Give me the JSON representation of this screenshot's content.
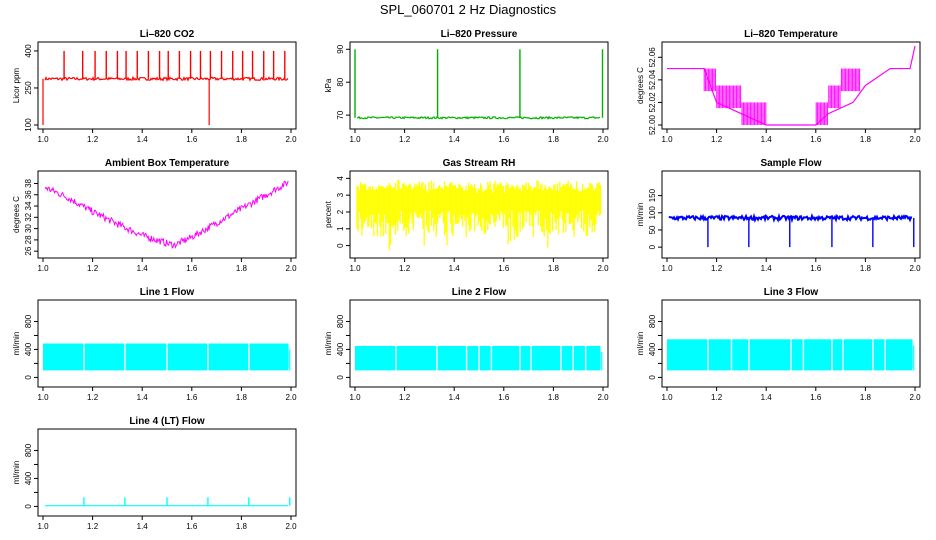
{
  "page_title": "SPL_060701  2 Hz Diagnostics",
  "colors": {
    "red": "#ff0000",
    "green": "#00b000",
    "magenta": "#ff00ff",
    "yellow": "#ffff00",
    "blue": "#0000ff",
    "cyan": "#00ffff"
  },
  "chart_data": [
    {
      "type": "line",
      "title": "Li–820 CO2",
      "ylabel": "Licor ppm",
      "color": "#ff0000",
      "style": "spiky",
      "xlim": [
        1.0,
        2.0
      ],
      "xticks": [
        1.0,
        1.2,
        1.4,
        1.6,
        1.8,
        2.0
      ],
      "xtick_labels": [
        "1.0",
        "1.2",
        "1.4",
        "1.6",
        "1.8",
        "2.0"
      ],
      "ylim": [
        100,
        420
      ],
      "yticks": [
        100,
        250,
        400
      ],
      "ytick_labels": [
        "100",
        "250",
        "400"
      ],
      "base": 287,
      "spread": 6,
      "spike_to": 400,
      "spike_xs": [
        1.085,
        1.16,
        1.21,
        1.255,
        1.3,
        1.335,
        1.38,
        1.425,
        1.47,
        1.505,
        1.55,
        1.595,
        1.635,
        1.675,
        1.72,
        1.765,
        1.805,
        1.845,
        1.89,
        1.93,
        1.975
      ],
      "drops": [
        [
          1.0,
          100
        ],
        [
          1.67,
          100
        ]
      ]
    },
    {
      "type": "line",
      "title": "Li–820 Pressure",
      "ylabel": "kPa",
      "color": "#00b000",
      "style": "spiky",
      "xlim": [
        1.0,
        2.0
      ],
      "xticks": [
        1.0,
        1.2,
        1.4,
        1.6,
        1.8,
        2.0
      ],
      "xtick_labels": [
        "1.0",
        "1.2",
        "1.4",
        "1.6",
        "1.8",
        "2.0"
      ],
      "ylim": [
        67,
        91
      ],
      "yticks": [
        70,
        80,
        90
      ],
      "ytick_labels": [
        "70",
        "80",
        "90"
      ],
      "base": 69.2,
      "spread": 0.3,
      "spike_to": 90,
      "spike_xs": [
        1.0,
        1.333,
        1.665,
        1.998
      ],
      "drops": []
    },
    {
      "type": "step",
      "title": "Li–820 Temperature",
      "ylabel": "degrees C",
      "color": "#ff00ff",
      "xlim": [
        1.0,
        2.0
      ],
      "xticks": [
        1.0,
        1.2,
        1.4,
        1.6,
        1.8,
        2.0
      ],
      "xtick_labels": [
        "1.0",
        "1.2",
        "1.4",
        "1.6",
        "1.8",
        "2.0"
      ],
      "ylim": [
        52.0,
        52.07
      ],
      "yticks": [
        52.0,
        52.02,
        52.04,
        52.06
      ],
      "ytick_labels": [
        "52.00",
        "52.02",
        "52.04",
        "52.06"
      ],
      "x": [
        1.0,
        1.15,
        1.2,
        1.3,
        1.4,
        1.5,
        1.6,
        1.65,
        1.75,
        1.8,
        1.9,
        1.98,
        2.0
      ],
      "y": [
        52.05,
        52.05,
        52.02,
        52.01,
        52.0,
        52.0,
        52.0,
        52.01,
        52.02,
        52.035,
        52.05,
        52.05,
        52.07
      ]
    },
    {
      "type": "line",
      "title": "Ambient Box Temperature",
      "ylabel": "degrees C",
      "color": "#ff00ff",
      "style": "noisy",
      "xlim": [
        1.0,
        2.0
      ],
      "xticks": [
        1.0,
        1.2,
        1.4,
        1.6,
        1.8,
        2.0
      ],
      "xtick_labels": [
        "1.0",
        "1.2",
        "1.4",
        "1.6",
        "1.8",
        "2.0"
      ],
      "ylim": [
        25.5,
        39.5
      ],
      "yticks": [
        26,
        28,
        30,
        32,
        34,
        36,
        38
      ],
      "ytick_labels": [
        "26",
        "28",
        "30",
        "32",
        "34",
        "36",
        "38"
      ],
      "x": [
        1.0,
        1.1,
        1.2,
        1.3,
        1.4,
        1.5,
        1.53,
        1.6,
        1.7,
        1.8,
        1.9,
        2.0
      ],
      "y": [
        37.5,
        35.5,
        33.0,
        30.8,
        28.8,
        27.4,
        27.1,
        28.5,
        31.0,
        33.5,
        36.0,
        38.5
      ],
      "spread": 0.6
    },
    {
      "type": "band",
      "title": "Gas Stream RH",
      "ylabel": "percent",
      "color": "#ffff00",
      "xlim": [
        1.0,
        2.0
      ],
      "xticks": [
        1.0,
        1.2,
        1.4,
        1.6,
        1.8,
        2.0
      ],
      "xtick_labels": [
        "1.0",
        "1.2",
        "1.4",
        "1.6",
        "1.8",
        "2.0"
      ],
      "ylim": [
        -0.5,
        4.2
      ],
      "yticks": [
        0,
        1,
        2,
        3,
        4
      ],
      "ytick_labels": [
        "0",
        "1",
        "2",
        "3",
        "4"
      ],
      "upper": 3.6,
      "lower": 0.5,
      "min_dip": -0.4
    },
    {
      "type": "line",
      "title": "Sample Flow",
      "ylabel": "ml/min",
      "color": "#0000ff",
      "style": "flow",
      "xlim": [
        1.0,
        2.0
      ],
      "xticks": [
        1.0,
        1.2,
        1.4,
        1.6,
        1.8,
        2.0
      ],
      "xtick_labels": [
        "1.0",
        "1.2",
        "1.4",
        "1.6",
        "1.8",
        "2.0"
      ],
      "ylim": [
        -20,
        210
      ],
      "yticks": [
        0,
        50,
        100,
        150
      ],
      "ytick_labels": [
        "0",
        "50",
        "100",
        "150"
      ],
      "base": 85,
      "spread": 6,
      "dip_xs": [
        1.165,
        1.33,
        1.495,
        1.665,
        1.83,
        1.995
      ],
      "dip_to": 0
    },
    {
      "type": "band",
      "title": "Line 1 Flow",
      "ylabel": "ml/min",
      "color": "#00ffff",
      "xlim": [
        1.0,
        2.0
      ],
      "xticks": [
        1.0,
        1.2,
        1.4,
        1.6,
        1.8,
        2.0
      ],
      "xtick_labels": [
        "1.0",
        "1.2",
        "1.4",
        "1.6",
        "1.8",
        "2.0"
      ],
      "ylim": [
        -80,
        1050
      ],
      "yticks": [
        0,
        200,
        400,
        600,
        800
      ],
      "ytick_labels": [
        "0",
        "400",
        "800"
      ],
      "ytick_labeled": [
        0,
        400,
        800
      ],
      "upper": 485,
      "lower": 100,
      "gap_xs": [
        1.165,
        1.33,
        1.5,
        1.665,
        1.83
      ]
    },
    {
      "type": "band",
      "title": "Line 2 Flow",
      "ylabel": "ml/min",
      "color": "#00ffff",
      "xlim": [
        1.0,
        2.0
      ],
      "xticks": [
        1.0,
        1.2,
        1.4,
        1.6,
        1.8,
        2.0
      ],
      "xtick_labels": [
        "1.0",
        "1.2",
        "1.4",
        "1.6",
        "1.8",
        "2.0"
      ],
      "ylim": [
        -80,
        1050
      ],
      "yticks": [
        0,
        200,
        400,
        600,
        800
      ],
      "ytick_labels": [
        "0",
        "400",
        "800"
      ],
      "ytick_labeled": [
        0,
        400,
        800
      ],
      "upper": 450,
      "lower": 100,
      "gap_xs": [
        1.165,
        1.33,
        1.45,
        1.5,
        1.55,
        1.665,
        1.71,
        1.83,
        1.88,
        1.93
      ]
    },
    {
      "type": "band",
      "title": "Line 3 Flow",
      "ylabel": "ml/min",
      "color": "#00ffff",
      "xlim": [
        1.0,
        2.0
      ],
      "xticks": [
        1.0,
        1.2,
        1.4,
        1.6,
        1.8,
        2.0
      ],
      "xtick_labels": [
        "1.0",
        "1.2",
        "1.4",
        "1.6",
        "1.8",
        "2.0"
      ],
      "ylim": [
        -80,
        1050
      ],
      "yticks": [
        0,
        200,
        400,
        600,
        800
      ],
      "ytick_labels": [
        "0",
        "400",
        "800"
      ],
      "ytick_labeled": [
        0,
        400,
        800
      ],
      "upper": 545,
      "lower": 100,
      "gap_xs": [
        1.165,
        1.26,
        1.33,
        1.5,
        1.55,
        1.665,
        1.71,
        1.83,
        1.88
      ]
    },
    {
      "type": "line",
      "title": "Line 4 (LT) Flow",
      "ylabel": "ml/min",
      "color": "#00ffff",
      "style": "flat",
      "xlim": [
        1.0,
        2.0
      ],
      "xticks": [
        1.0,
        1.2,
        1.4,
        1.6,
        1.8,
        2.0
      ],
      "xtick_labels": [
        "1.0",
        "1.2",
        "1.4",
        "1.6",
        "1.8",
        "2.0"
      ],
      "ylim": [
        -80,
        1050
      ],
      "yticks": [
        0,
        200,
        400,
        600,
        800
      ],
      "ytick_labels": [
        "0",
        "400",
        "800"
      ],
      "ytick_labeled": [
        0,
        400,
        800
      ],
      "base": 10,
      "spike_xs": [
        1.165,
        1.33,
        1.5,
        1.665,
        1.83,
        1.995
      ],
      "spike_to": 130
    }
  ]
}
